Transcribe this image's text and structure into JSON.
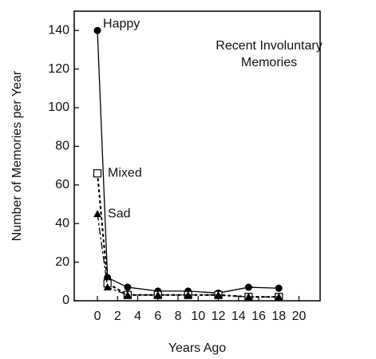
{
  "chart_data": {
    "type": "line",
    "annotation": [
      "Recent Involuntary",
      "Memories"
    ],
    "x_label": "Years Ago",
    "y_label": "Number of Memories per Year",
    "x": [
      0,
      1,
      3,
      6,
      9,
      12,
      15,
      18
    ],
    "series": [
      {
        "name": "Happy",
        "color": "#000000",
        "marker": "circle",
        "dash": "solid",
        "values": [
          140,
          12,
          7,
          5,
          5,
          4,
          7,
          6.5
        ]
      },
      {
        "name": "Mixed",
        "color": "#000000",
        "marker": "square",
        "dash": "dotted",
        "values": [
          66,
          9,
          3,
          3,
          3,
          3,
          2,
          2
        ]
      },
      {
        "name": "Sad",
        "color": "#000000",
        "marker": "triangle",
        "dash": "dashdot",
        "values": [
          45,
          7,
          3,
          3,
          3,
          3,
          2,
          2
        ]
      }
    ],
    "xlim": [
      -2.3,
      22.1
    ],
    "xticks": [
      0,
      2,
      4,
      6,
      8,
      10,
      12,
      14,
      16,
      18,
      20
    ],
    "ylim": [
      0,
      150
    ],
    "yticks": [
      0,
      20,
      40,
      60,
      80,
      100,
      120,
      140
    ],
    "grid": false
  }
}
